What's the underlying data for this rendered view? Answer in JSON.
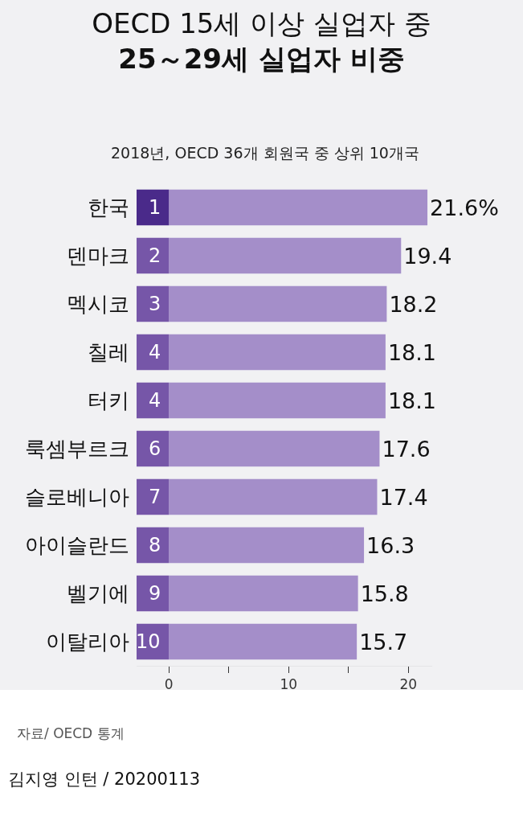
{
  "chart_data": {
    "type": "bar",
    "orientation": "horizontal",
    "title": "OECD 15세 이상 실업자 중\n25～29세 실업자 비중",
    "subtitle": "2018년, OECD 36개 회원국 중 상위 10개국",
    "categories": [
      "한국",
      "덴마크",
      "멕시코",
      "칠레",
      "터키",
      "룩셈부르크",
      "슬로베니아",
      "아이슬란드",
      "벨기에",
      "이탈리아"
    ],
    "values": [
      21.6,
      19.4,
      18.2,
      18.1,
      18.1,
      17.6,
      17.4,
      16.3,
      15.8,
      15.7
    ],
    "value_labels": [
      "21.6%",
      "19.4",
      "18.2",
      "18.1",
      "18.1",
      "17.6",
      "17.4",
      "16.3",
      "15.8",
      "15.7"
    ],
    "color": "#a48ec9",
    "xlim": [
      -2.7,
      22
    ],
    "xticks": [
      0,
      {
        "value": 5,
        "label": null
      },
      10,
      {
        "value": 15,
        "label": null
      },
      20
    ],
    "annotations": [
      "1",
      "2",
      "3",
      "4",
      "4",
      "6",
      "7",
      "8",
      "9",
      "10",
      "자료/ OECD 통계",
      "김지영 인턴 / 20200113"
    ]
  }
}
